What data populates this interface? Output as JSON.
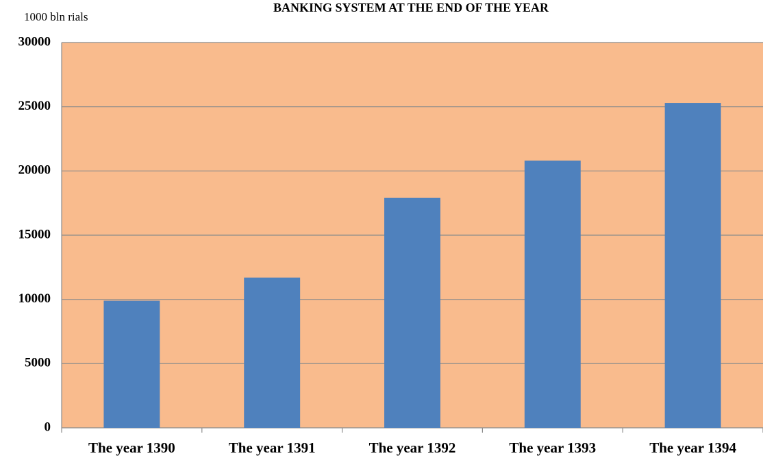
{
  "chart_data": {
    "type": "bar",
    "title": "BANKING SYSTEM AT THE END OF THE YEAR",
    "y_label": "1000 bln rials",
    "categories": [
      "The year 1390",
      "The year 1391",
      "The year 1392",
      "The year 1393",
      "The year 1394"
    ],
    "values": [
      9900,
      11700,
      17900,
      20800,
      25300
    ],
    "color": "#4f81bd",
    "plot_background": "#f9bb8d",
    "ylim": [
      0,
      30000
    ],
    "yticks": [
      0,
      5000,
      10000,
      15000,
      20000,
      25000,
      30000
    ],
    "grid": true
  }
}
